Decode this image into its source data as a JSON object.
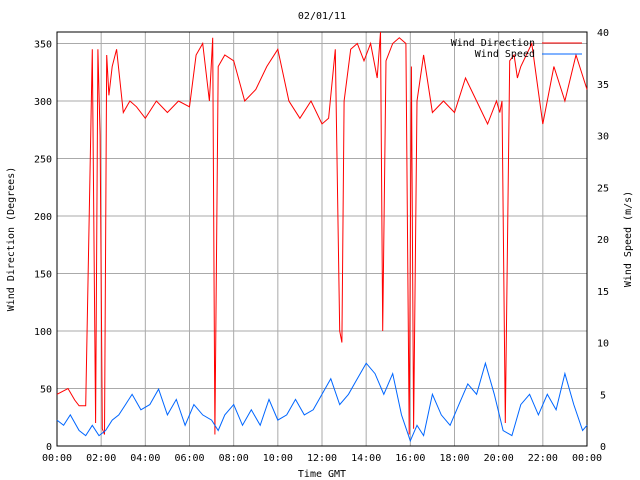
{
  "chart_data": {
    "type": "line",
    "title": "02/01/11",
    "xlabel": "Time GMT",
    "ylabel_left": "Wind Direction (Degrees)",
    "ylabel_right": "Wind Speed (m/s)",
    "x_tick_labels": [
      "00:00",
      "02:00",
      "04:00",
      "06:00",
      "08:00",
      "10:00",
      "12:00",
      "14:00",
      "16:00",
      "18:00",
      "20:00",
      "22:00",
      "00:00"
    ],
    "xlim_hours": [
      0,
      24
    ],
    "ylim_left": [
      0,
      360
    ],
    "ylim_right": [
      0,
      40
    ],
    "y_ticks_left": [
      0,
      50,
      100,
      150,
      200,
      250,
      300,
      350
    ],
    "y_ticks_right": [
      0,
      5,
      10,
      15,
      20,
      25,
      30,
      35,
      40
    ],
    "grid": true,
    "legend_position": "top-right",
    "series": [
      {
        "name": "Wind Direction",
        "axis": "left",
        "color": "#ff0000",
        "x_hours": [
          0,
          0.5,
          0.8,
          1,
          1.3,
          1.6,
          1.75,
          1.85,
          1.95,
          2.05,
          2.15,
          2.25,
          2.35,
          2.5,
          2.7,
          3,
          3.3,
          3.6,
          4,
          4.5,
          5,
          5.5,
          6,
          6.3,
          6.6,
          6.9,
          7.05,
          7.15,
          7.3,
          7.6,
          8,
          8.5,
          9,
          9.5,
          10,
          10.5,
          11,
          11.5,
          12,
          12.3,
          12.6,
          12.8,
          12.9,
          13,
          13.3,
          13.6,
          13.9,
          14.2,
          14.5,
          14.65,
          14.75,
          14.9,
          15.2,
          15.5,
          15.8,
          15.95,
          16.05,
          16.15,
          16.3,
          16.6,
          17,
          17.5,
          18,
          18.5,
          19,
          19.5,
          19.9,
          20.05,
          20.15,
          20.3,
          20.5,
          20.7,
          20.85,
          21,
          21.5,
          22,
          22.5,
          23,
          23.5,
          24
        ],
        "y": [
          45,
          50,
          40,
          35,
          35,
          345,
          20,
          345,
          270,
          15,
          10,
          340,
          305,
          330,
          345,
          290,
          300,
          295,
          285,
          300,
          290,
          300,
          295,
          340,
          350,
          300,
          355,
          10,
          330,
          340,
          335,
          300,
          310,
          330,
          345,
          300,
          285,
          300,
          280,
          285,
          345,
          100,
          90,
          300,
          345,
          350,
          335,
          350,
          320,
          360,
          100,
          335,
          350,
          355,
          350,
          10,
          330,
          15,
          300,
          340,
          290,
          300,
          290,
          320,
          300,
          280,
          300,
          290,
          300,
          20,
          335,
          340,
          320,
          330,
          350,
          280,
          330,
          300,
          340,
          310
        ]
      },
      {
        "name": "Wind Speed",
        "axis": "right",
        "color": "#0066ff",
        "x_hours": [
          0,
          0.3,
          0.6,
          1,
          1.3,
          1.6,
          1.9,
          2.2,
          2.5,
          2.8,
          3.1,
          3.4,
          3.8,
          4.2,
          4.6,
          5,
          5.4,
          5.8,
          6.2,
          6.6,
          7,
          7.3,
          7.6,
          8,
          8.4,
          8.8,
          9.2,
          9.6,
          10,
          10.4,
          10.8,
          11.2,
          11.6,
          12,
          12.4,
          12.8,
          13.2,
          13.6,
          14,
          14.4,
          14.8,
          15.2,
          15.6,
          16,
          16.3,
          16.6,
          17,
          17.4,
          17.8,
          18.2,
          18.6,
          19,
          19.4,
          19.8,
          20.2,
          20.6,
          21,
          21.4,
          21.8,
          22.2,
          22.6,
          23,
          23.4,
          23.8,
          24
        ],
        "y": [
          2.5,
          2,
          3,
          1.5,
          1,
          2,
          1,
          1.5,
          2.5,
          3,
          4,
          5,
          3.5,
          4,
          5.5,
          3,
          4.5,
          2,
          4,
          3,
          2.5,
          1.5,
          3,
          4,
          2,
          3.5,
          2,
          4.5,
          2.5,
          3,
          4.5,
          3,
          3.5,
          5,
          6.5,
          4,
          5,
          6.5,
          8,
          7,
          5,
          7,
          3,
          0.5,
          2,
          1,
          5,
          3,
          2,
          4,
          6,
          5,
          8,
          5,
          1.5,
          1,
          4,
          5,
          3,
          5,
          3.5,
          7,
          4,
          1.5,
          2
        ]
      }
    ]
  }
}
